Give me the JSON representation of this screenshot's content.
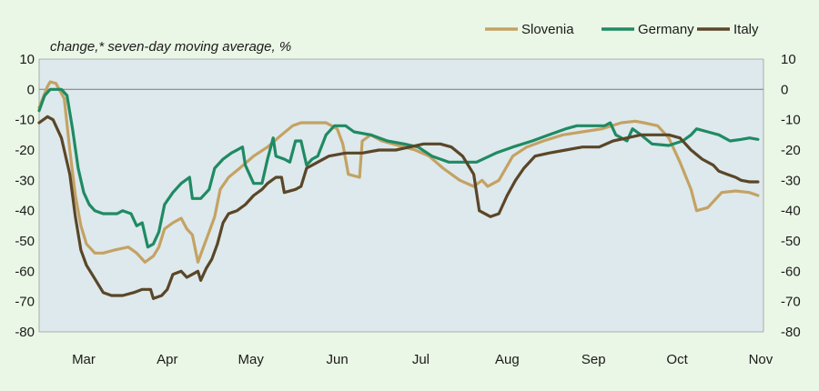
{
  "chart_data": {
    "type": "line",
    "subtitle": "change,* seven-day moving average, %",
    "x_labels": [
      "Mar",
      "Apr",
      "May",
      "Jun",
      "Jul",
      "Aug",
      "Sep",
      "Oct",
      "Nov"
    ],
    "ylim": [
      -80,
      10
    ],
    "yticks": [
      10,
      0,
      -10,
      -20,
      -30,
      -40,
      -50,
      -60,
      -70,
      -80
    ],
    "grid": "zero-line only",
    "legend_position": "top-right",
    "x_unit": "days since 18 Feb",
    "colors": {
      "plot_bg": "#dde9ec",
      "page_bg": "#ebf7e6"
    },
    "series": [
      {
        "name": "Slovenia",
        "color": "#c4a264",
        "points": [
          [
            0,
            -6
          ],
          [
            3,
            1
          ],
          [
            4,
            2.5
          ],
          [
            6,
            2
          ],
          [
            9,
            -3
          ],
          [
            11,
            -20
          ],
          [
            13,
            -35
          ],
          [
            15,
            -45
          ],
          [
            17,
            -51
          ],
          [
            20,
            -54
          ],
          [
            23,
            -54
          ],
          [
            27,
            -53
          ],
          [
            32,
            -52
          ],
          [
            35,
            -54
          ],
          [
            38,
            -57
          ],
          [
            41,
            -55
          ],
          [
            43,
            -52
          ],
          [
            45,
            -46
          ],
          [
            48,
            -44
          ],
          [
            51,
            -42.5
          ],
          [
            53,
            -46
          ],
          [
            55,
            -48
          ],
          [
            57,
            -57
          ],
          [
            59,
            -52
          ],
          [
            61,
            -47
          ],
          [
            63,
            -42
          ],
          [
            65,
            -33
          ],
          [
            68,
            -29
          ],
          [
            72,
            -26
          ],
          [
            77,
            -22
          ],
          [
            82,
            -19
          ],
          [
            87,
            -15
          ],
          [
            91,
            -12
          ],
          [
            94,
            -11
          ],
          [
            98,
            -11
          ],
          [
            103,
            -11
          ],
          [
            107,
            -13
          ],
          [
            109,
            -18
          ],
          [
            111,
            -28
          ],
          [
            115,
            -29
          ],
          [
            116,
            -17
          ],
          [
            119,
            -15
          ],
          [
            123,
            -17
          ],
          [
            127,
            -18
          ],
          [
            131,
            -19
          ],
          [
            135,
            -20
          ],
          [
            140,
            -22
          ],
          [
            145,
            -26
          ],
          [
            151,
            -30
          ],
          [
            156,
            -32
          ],
          [
            159,
            -30
          ],
          [
            161,
            -32
          ],
          [
            165,
            -30
          ],
          [
            170,
            -22
          ],
          [
            175,
            -19
          ],
          [
            181,
            -17
          ],
          [
            188,
            -15
          ],
          [
            195,
            -14
          ],
          [
            202,
            -13
          ],
          [
            209,
            -11
          ],
          [
            214,
            -10.5
          ],
          [
            217,
            -11
          ],
          [
            222,
            -12
          ],
          [
            226,
            -16
          ],
          [
            230,
            -24
          ],
          [
            234,
            -33
          ],
          [
            236,
            -40
          ],
          [
            240,
            -39
          ],
          [
            243,
            -36
          ],
          [
            245,
            -34
          ],
          [
            250,
            -33.5
          ],
          [
            255,
            -34
          ],
          [
            258,
            -35
          ]
        ]
      },
      {
        "name": "Germany",
        "color": "#1f8a63",
        "points": [
          [
            0,
            -7
          ],
          [
            2,
            -2
          ],
          [
            4,
            0
          ],
          [
            8,
            0
          ],
          [
            10,
            -2
          ],
          [
            12,
            -13
          ],
          [
            14,
            -26
          ],
          [
            16,
            -34
          ],
          [
            18,
            -38
          ],
          [
            20,
            -40
          ],
          [
            23,
            -41
          ],
          [
            28,
            -41
          ],
          [
            30,
            -40
          ],
          [
            33,
            -41
          ],
          [
            35,
            -45
          ],
          [
            37,
            -44
          ],
          [
            39,
            -52
          ],
          [
            41,
            -51
          ],
          [
            43,
            -47
          ],
          [
            45,
            -38
          ],
          [
            48,
            -34
          ],
          [
            51,
            -31
          ],
          [
            54,
            -29
          ],
          [
            55,
            -36
          ],
          [
            58,
            -36
          ],
          [
            61,
            -33
          ],
          [
            63,
            -26
          ],
          [
            66,
            -23
          ],
          [
            69,
            -21
          ],
          [
            73,
            -19
          ],
          [
            74,
            -25
          ],
          [
            77,
            -31
          ],
          [
            80,
            -31
          ],
          [
            82,
            -23
          ],
          [
            84,
            -16
          ],
          [
            85,
            -22
          ],
          [
            88,
            -23
          ],
          [
            90,
            -24
          ],
          [
            92,
            -17
          ],
          [
            94,
            -17
          ],
          [
            96,
            -25
          ],
          [
            98,
            -23
          ],
          [
            100,
            -22
          ],
          [
            103,
            -15
          ],
          [
            106,
            -12
          ],
          [
            110,
            -12
          ],
          [
            113,
            -14
          ],
          [
            119,
            -15
          ],
          [
            125,
            -17
          ],
          [
            131,
            -18
          ],
          [
            136,
            -19
          ],
          [
            141,
            -22
          ],
          [
            147,
            -24
          ],
          [
            153,
            -24
          ],
          [
            157,
            -24
          ],
          [
            164,
            -21
          ],
          [
            170,
            -19
          ],
          [
            177,
            -17
          ],
          [
            183,
            -15
          ],
          [
            189,
            -13
          ],
          [
            193,
            -12
          ],
          [
            198,
            -12
          ],
          [
            203,
            -12
          ],
          [
            205,
            -11
          ],
          [
            207,
            -15
          ],
          [
            211,
            -17
          ],
          [
            213,
            -13
          ],
          [
            216,
            -15
          ],
          [
            220,
            -18
          ],
          [
            226,
            -18.5
          ],
          [
            231,
            -17
          ],
          [
            234,
            -15
          ],
          [
            236,
            -13
          ],
          [
            240,
            -14
          ],
          [
            244,
            -15
          ],
          [
            248,
            -17
          ],
          [
            252,
            -16.5
          ],
          [
            255,
            -16
          ],
          [
            258,
            -16.5
          ]
        ]
      },
      {
        "name": "Italy",
        "color": "#5a4628",
        "points": [
          [
            0,
            -11
          ],
          [
            3,
            -9
          ],
          [
            5,
            -10
          ],
          [
            8,
            -16
          ],
          [
            11,
            -28
          ],
          [
            13,
            -42
          ],
          [
            15,
            -53
          ],
          [
            17,
            -58
          ],
          [
            19,
            -61
          ],
          [
            21,
            -64
          ],
          [
            23,
            -67
          ],
          [
            26,
            -68
          ],
          [
            30,
            -68
          ],
          [
            34,
            -67
          ],
          [
            37,
            -66
          ],
          [
            40,
            -66
          ],
          [
            41,
            -69
          ],
          [
            44,
            -68
          ],
          [
            46,
            -66
          ],
          [
            48,
            -61
          ],
          [
            51,
            -60
          ],
          [
            53,
            -62
          ],
          [
            55,
            -61
          ],
          [
            57,
            -60
          ],
          [
            58,
            -63
          ],
          [
            60,
            -59
          ],
          [
            62,
            -56
          ],
          [
            64,
            -51
          ],
          [
            66,
            -44
          ],
          [
            68,
            -41
          ],
          [
            71,
            -40
          ],
          [
            74,
            -38
          ],
          [
            77,
            -35
          ],
          [
            80,
            -33
          ],
          [
            82,
            -31
          ],
          [
            85,
            -29
          ],
          [
            87,
            -29
          ],
          [
            88,
            -34
          ],
          [
            92,
            -33
          ],
          [
            94,
            -32
          ],
          [
            96,
            -26
          ],
          [
            100,
            -24
          ],
          [
            104,
            -22
          ],
          [
            110,
            -21
          ],
          [
            116,
            -21
          ],
          [
            122,
            -20
          ],
          [
            128,
            -20
          ],
          [
            133,
            -19
          ],
          [
            138,
            -18
          ],
          [
            144,
            -18
          ],
          [
            148,
            -19
          ],
          [
            152,
            -22
          ],
          [
            156,
            -28
          ],
          [
            158,
            -40
          ],
          [
            162,
            -42
          ],
          [
            165,
            -41
          ],
          [
            168,
            -35
          ],
          [
            171,
            -30
          ],
          [
            174,
            -26
          ],
          [
            178,
            -22
          ],
          [
            183,
            -21
          ],
          [
            189,
            -20
          ],
          [
            195,
            -19
          ],
          [
            201,
            -19
          ],
          [
            206,
            -17
          ],
          [
            211,
            -16
          ],
          [
            216,
            -15
          ],
          [
            221,
            -15
          ],
          [
            226,
            -15
          ],
          [
            230,
            -16
          ],
          [
            234,
            -20
          ],
          [
            238,
            -23
          ],
          [
            242,
            -25
          ],
          [
            244,
            -27
          ],
          [
            247,
            -28
          ],
          [
            250,
            -29
          ],
          [
            252,
            -30
          ],
          [
            255,
            -30.5
          ],
          [
            258,
            -30.5
          ]
        ]
      }
    ]
  }
}
